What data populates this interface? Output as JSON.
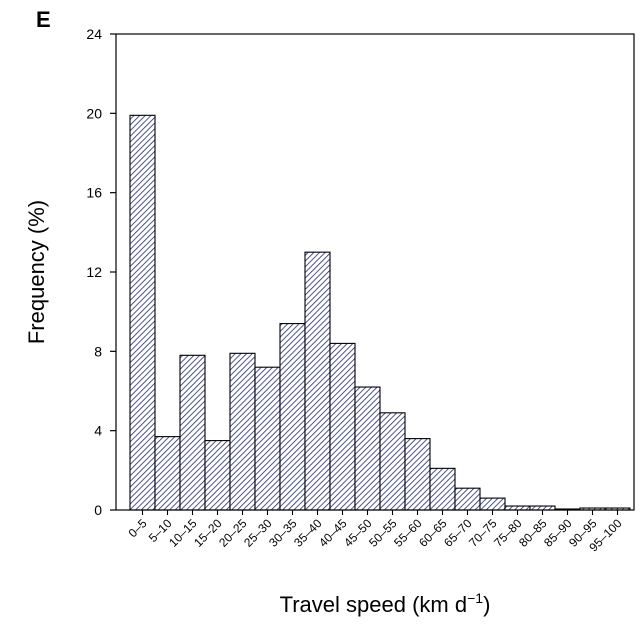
{
  "panel_label": "E",
  "colors": {
    "bar_stroke": "#000000",
    "hatch": "#1f2a6e",
    "axis": "#000000",
    "text": "#000000"
  },
  "chart_data": {
    "type": "bar",
    "pattern": "diagonal-hatch",
    "title": "",
    "xlabel": "Travel speed (km d⁻¹)",
    "xlabel_parts": {
      "main": "Travel speed (km d",
      "sup": "−1",
      "tail": ")"
    },
    "ylabel": "Frequency (%)",
    "ylim": [
      0,
      24
    ],
    "yticks": [
      0,
      4,
      8,
      12,
      16,
      20,
      24
    ],
    "ytick_labels": [
      "0",
      "4",
      "8",
      "12",
      "16",
      "20",
      "24"
    ],
    "grid": false,
    "categories": [
      "0–5",
      "5–10",
      "10–15",
      "15–20",
      "20–25",
      "25–30",
      "30–35",
      "35–40",
      "40–45",
      "45–50",
      "50–55",
      "55–60",
      "60–65",
      "65–70",
      "70–75",
      "75–80",
      "80–85",
      "85–90",
      "90–95",
      "95–100"
    ],
    "values": [
      19.9,
      3.7,
      7.8,
      3.5,
      7.9,
      7.2,
      9.4,
      13.0,
      8.4,
      6.2,
      4.9,
      3.6,
      2.1,
      1.1,
      0.6,
      0.2,
      0.2,
      0.05,
      0.1,
      0.1
    ]
  }
}
